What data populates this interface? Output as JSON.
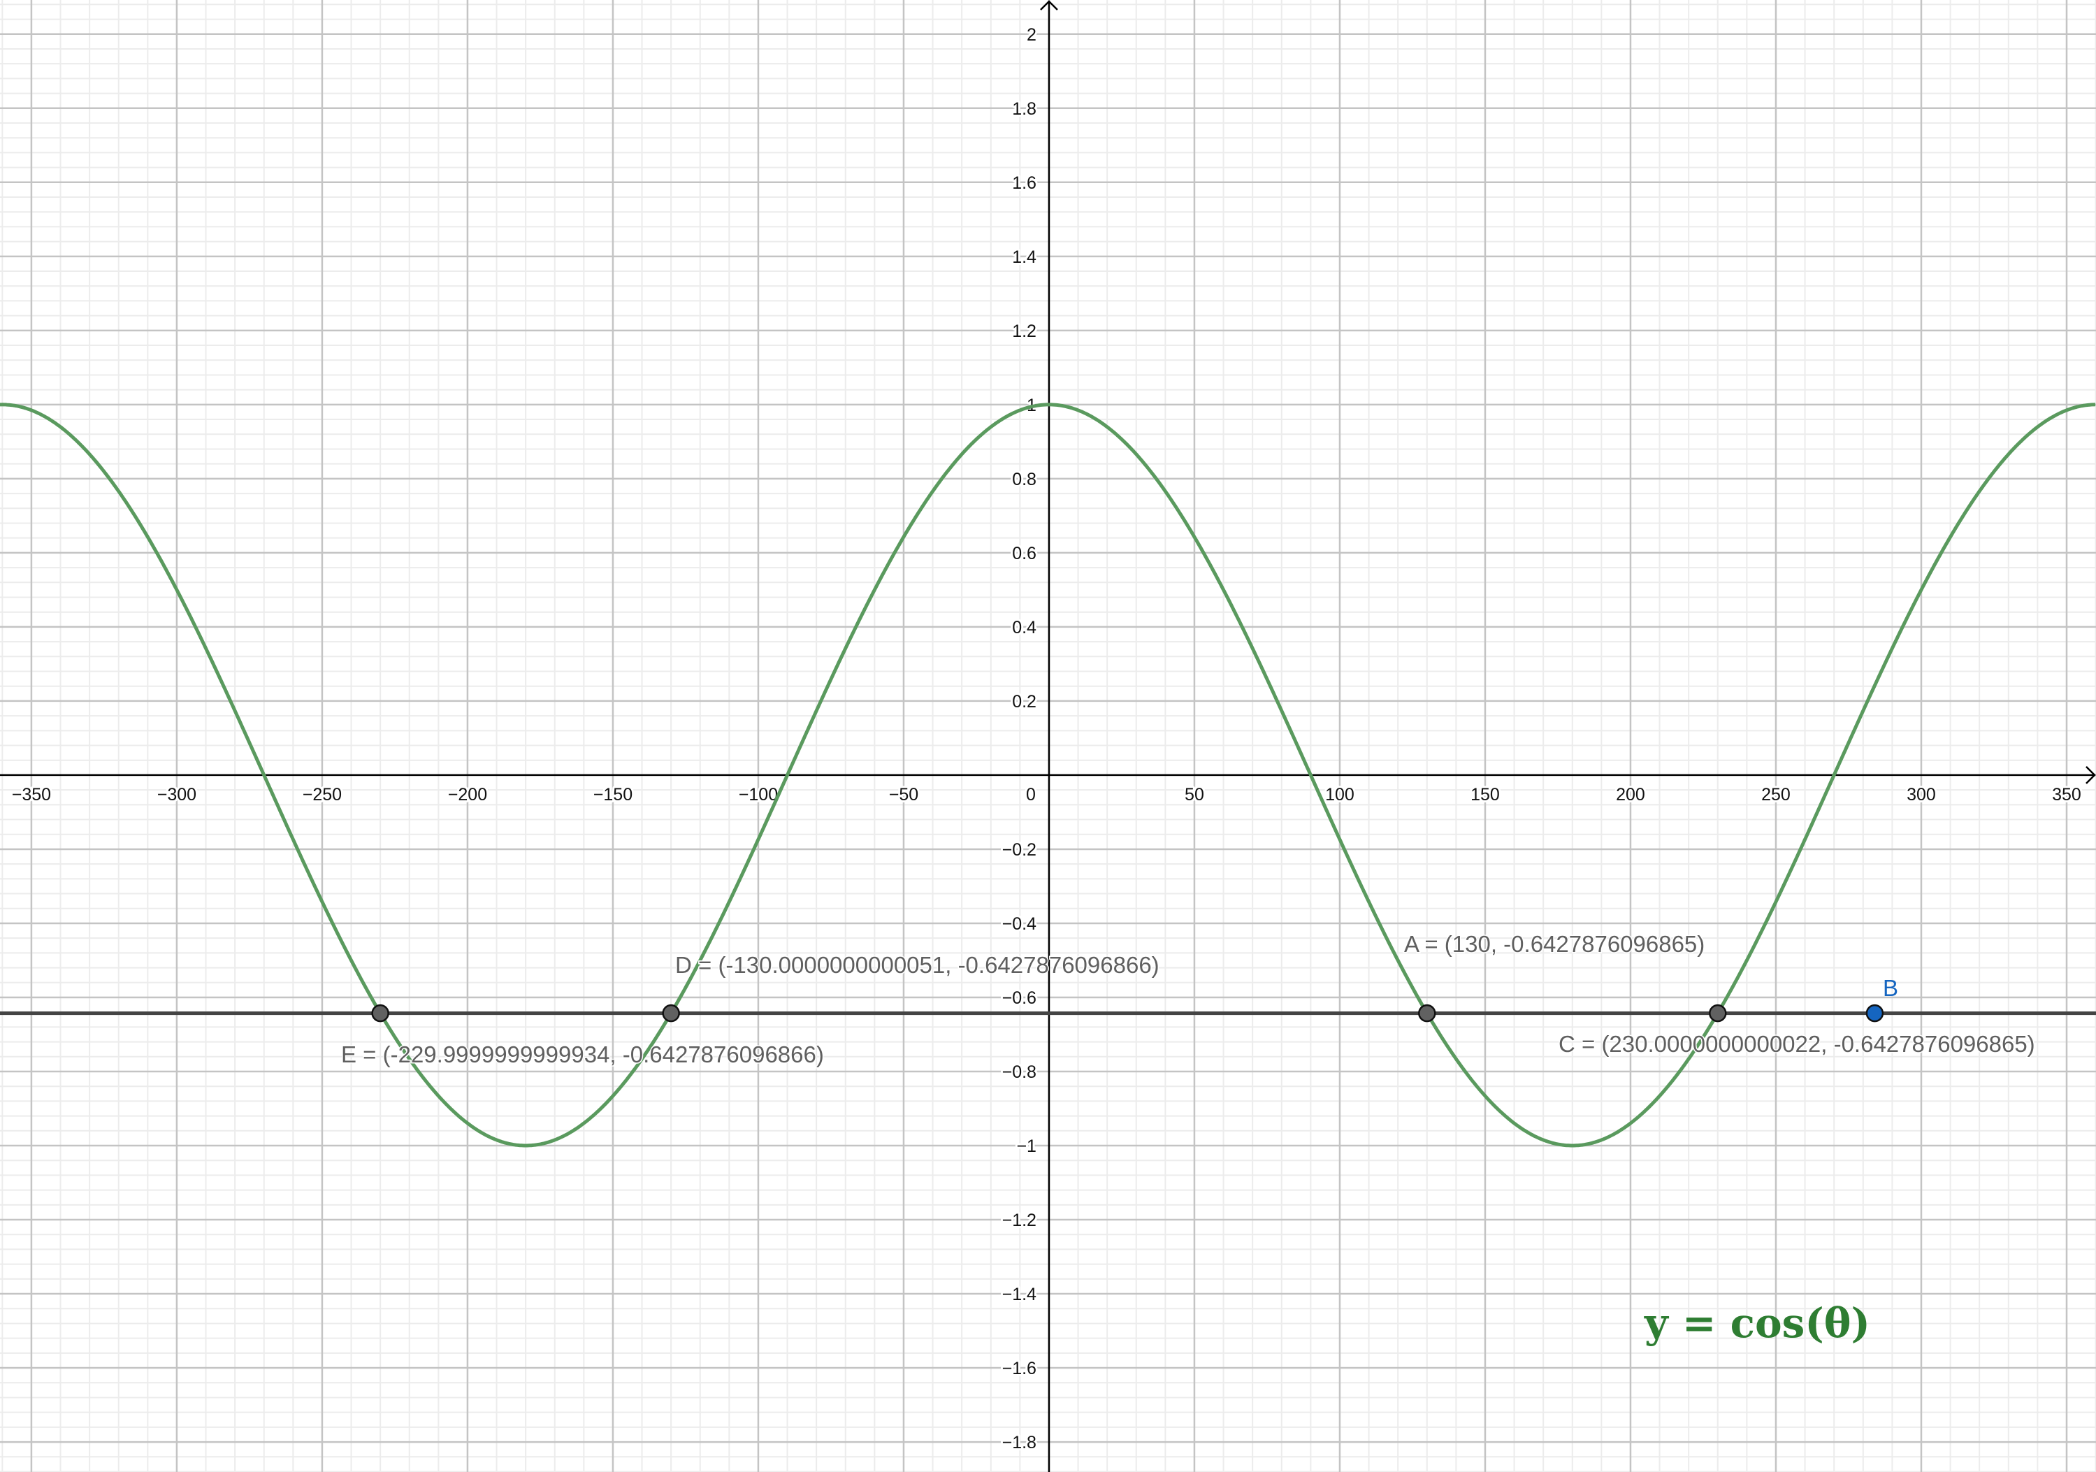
{
  "chart_data": {
    "type": "line",
    "title": "",
    "xlabel": "",
    "ylabel": "",
    "xlim": [
      -360.8,
      360.1
    ],
    "ylim": [
      -1.881,
      2.092
    ],
    "grid": true,
    "x_major_step": 50,
    "x_minor_step": 10,
    "y_major_step": 0.2,
    "y_minor_step": 0.04,
    "x_ticks": [
      "−350",
      "−300",
      "−250",
      "−200",
      "−150",
      "−100",
      "−50",
      "0",
      "50",
      "100",
      "150",
      "200",
      "250",
      "300",
      "350"
    ],
    "x_tick_values": [
      -350,
      -300,
      -250,
      -200,
      -150,
      -100,
      -50,
      0,
      50,
      100,
      150,
      200,
      250,
      300,
      350
    ],
    "y_ticks": [
      "−1.8",
      "−1.6",
      "−1.4",
      "−1.2",
      "−1",
      "−0.8",
      "−0.6",
      "−0.4",
      "−0.2",
      "0.2",
      "0.4",
      "0.6",
      "0.8",
      "1",
      "1.2",
      "1.4",
      "1.6",
      "1.8",
      "2"
    ],
    "y_tick_values": [
      -1.8,
      -1.6,
      -1.4,
      -1.2,
      -1,
      -0.8,
      -0.6,
      -0.4,
      -0.2,
      0.2,
      0.4,
      0.6,
      0.8,
      1,
      1.2,
      1.4,
      1.6,
      1.8,
      2
    ],
    "series": [
      {
        "function": "cos(x°)",
        "color": "#5a9a5e"
      },
      {
        "function": "y = -0.6427876096865",
        "color": "#444444"
      }
    ],
    "points": [
      {
        "name": "A",
        "x": 130,
        "y": -0.6427876096865,
        "label": "A = (130, -0.6427876096865)",
        "color": "#616161"
      },
      {
        "name": "B",
        "x": 284,
        "y": -0.6427876096865,
        "label": "B",
        "color": "#1565c0"
      },
      {
        "name": "C",
        "x": 230.0000000000022,
        "y": -0.6427876096865,
        "label": "C = (230.0000000000022, -0.6427876096865)",
        "color": "#616161"
      },
      {
        "name": "D",
        "x": -130.0000000000051,
        "y": -0.6427876096866,
        "label": "D = (-130.0000000000051, -0.6427876096866)",
        "color": "#616161"
      },
      {
        "name": "E",
        "x": -229.9999999999934,
        "y": -0.6427876096866,
        "label": "E = (-229.9999999999934, -0.6427876096866)",
        "color": "#616161"
      }
    ],
    "annotation": "y = cos(θ)",
    "annotation_color": "#2e7d32"
  }
}
